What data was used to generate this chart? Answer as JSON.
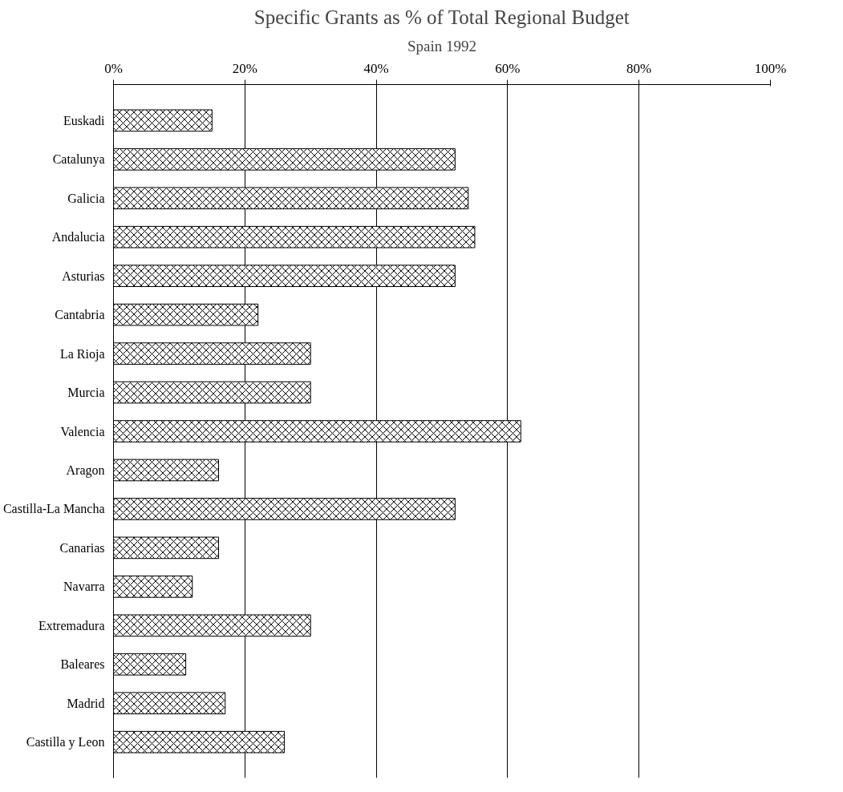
{
  "chart_data": {
    "type": "bar",
    "orientation": "horizontal",
    "title": "Specific Grants as % of Total Regional Budget",
    "subtitle": "Spain 1992",
    "categories": [
      "Euskadi",
      "Catalunya",
      "Galicia",
      "Andalucia",
      "Asturias",
      "Cantabria",
      "La Rioja",
      "Murcia",
      "Valencia",
      "Aragon",
      "Castilla-La Mancha",
      "Canarias",
      "Navarra",
      "Extremadura",
      "Baleares",
      "Madrid",
      "Castilla y Leon"
    ],
    "values": [
      15,
      52,
      54,
      55,
      52,
      22,
      30,
      30,
      62,
      16,
      52,
      16,
      12,
      30,
      11,
      17,
      26
    ],
    "color": "#ffffff",
    "xlim": [
      0,
      100
    ],
    "xticks": [
      {
        "value": 0,
        "label": "0%"
      },
      {
        "value": 20,
        "label": "20%"
      },
      {
        "value": 40,
        "label": "40%"
      },
      {
        "value": 60,
        "label": "60%"
      },
      {
        "value": 80,
        "label": "80%"
      },
      {
        "value": 100,
        "label": "100%"
      }
    ],
    "grid": "x"
  }
}
